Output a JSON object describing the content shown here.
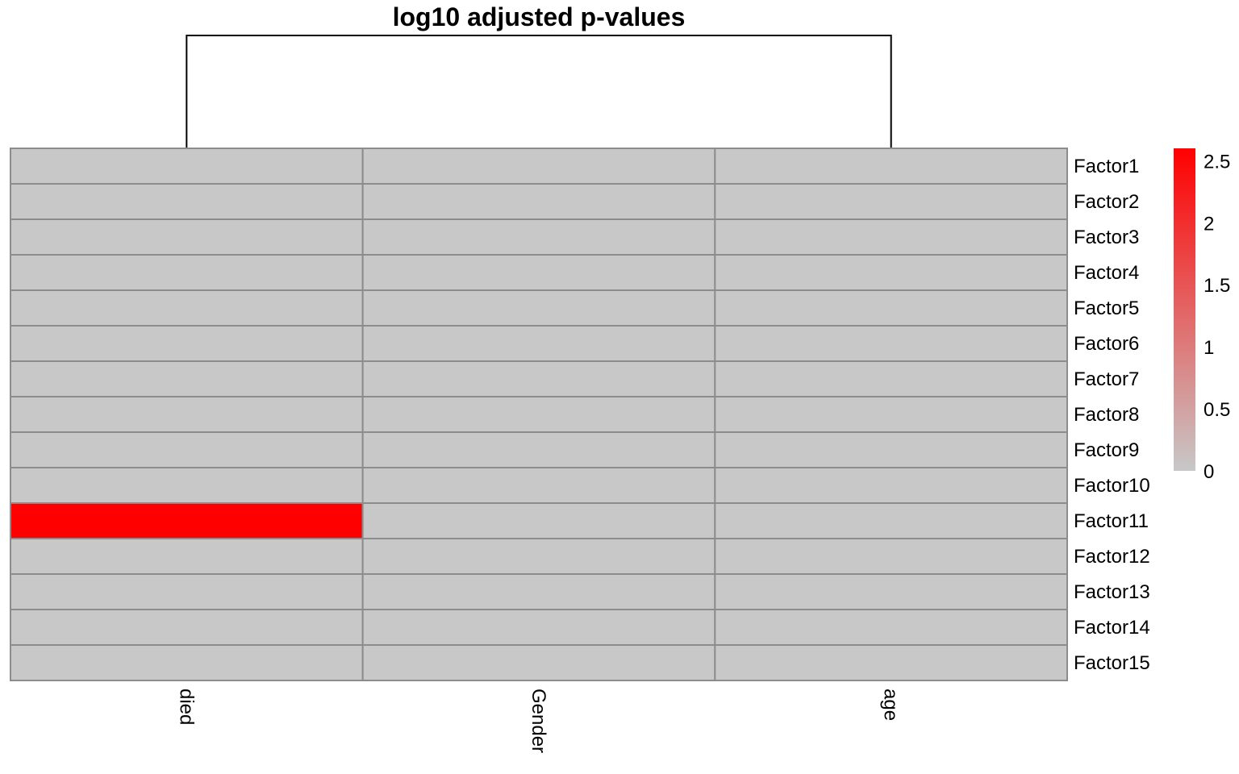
{
  "chart_data": {
    "type": "heatmap",
    "title": "log10 adjusted p-values",
    "columns": [
      "died",
      "Gender",
      "age"
    ],
    "rows": [
      "Factor1",
      "Factor2",
      "Factor3",
      "Factor4",
      "Factor5",
      "Factor6",
      "Factor7",
      "Factor8",
      "Factor9",
      "Factor10",
      "Factor11",
      "Factor12",
      "Factor13",
      "Factor14",
      "Factor15"
    ],
    "values": [
      [
        0,
        0,
        0
      ],
      [
        0,
        0,
        0
      ],
      [
        0,
        0,
        0
      ],
      [
        0,
        0,
        0
      ],
      [
        0,
        0,
        0
      ],
      [
        0,
        0,
        0
      ],
      [
        0,
        0,
        0
      ],
      [
        0,
        0,
        0
      ],
      [
        0,
        0,
        0
      ],
      [
        0,
        0,
        0
      ],
      [
        2.6,
        0,
        0
      ],
      [
        0,
        0,
        0
      ],
      [
        0,
        0,
        0
      ],
      [
        0,
        0,
        0
      ],
      [
        0,
        0,
        0
      ]
    ],
    "color_scale": {
      "low": "#C8C8C8",
      "high": "#FF0000",
      "min": 0,
      "max": 2.6,
      "ticks": [
        "0",
        "0.5",
        "1",
        "1.5",
        "2",
        "2.5"
      ],
      "tick_values": [
        0,
        0.5,
        1,
        1.5,
        2,
        2.5
      ]
    },
    "cell_border_color": "#8C8C8C",
    "column_dendrogram": "died joined with age",
    "legend_position": "right"
  }
}
